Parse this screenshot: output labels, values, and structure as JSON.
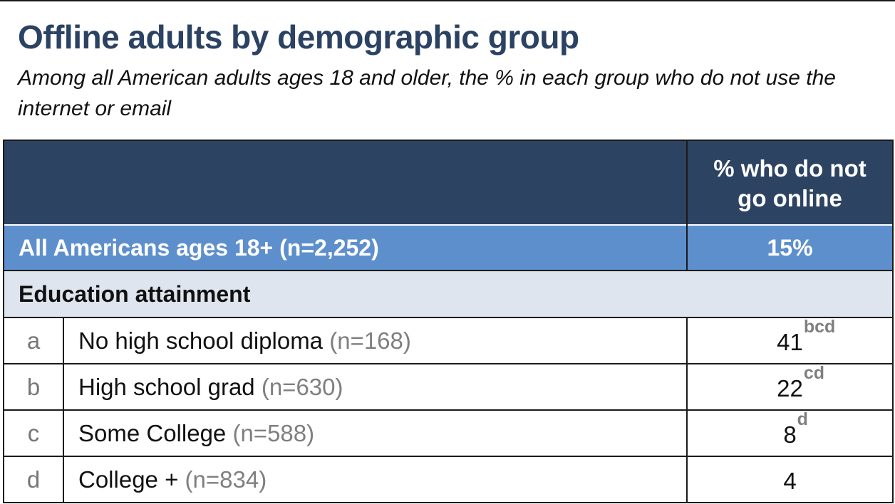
{
  "chart_data": {
    "type": "table",
    "title": "Offline adults by demographic group",
    "subtitle": "Among all American adults ages 18 and older, the % in each group who do not use the internet or email",
    "column_header": "% who do not go online",
    "total": {
      "label": "All Americans ages 18+ (n=2,252)",
      "value_text": "15%",
      "value": 15
    },
    "group": "Education attainment",
    "rows": [
      {
        "letter": "a",
        "label": "No high school diploma",
        "n": "(n=168)",
        "value": 41,
        "value_text": "41",
        "sig": "bcd"
      },
      {
        "letter": "b",
        "label": "High school grad",
        "n": "(n=630)",
        "value": 22,
        "value_text": "22",
        "sig": "cd"
      },
      {
        "letter": "c",
        "label": "Some College",
        "n": "(n=588)",
        "value": 8,
        "value_text": "8",
        "sig": "d"
      },
      {
        "letter": "d",
        "label": "College +",
        "n": "(n=834)",
        "value": 4,
        "value_text": "4",
        "sig": ""
      }
    ]
  }
}
